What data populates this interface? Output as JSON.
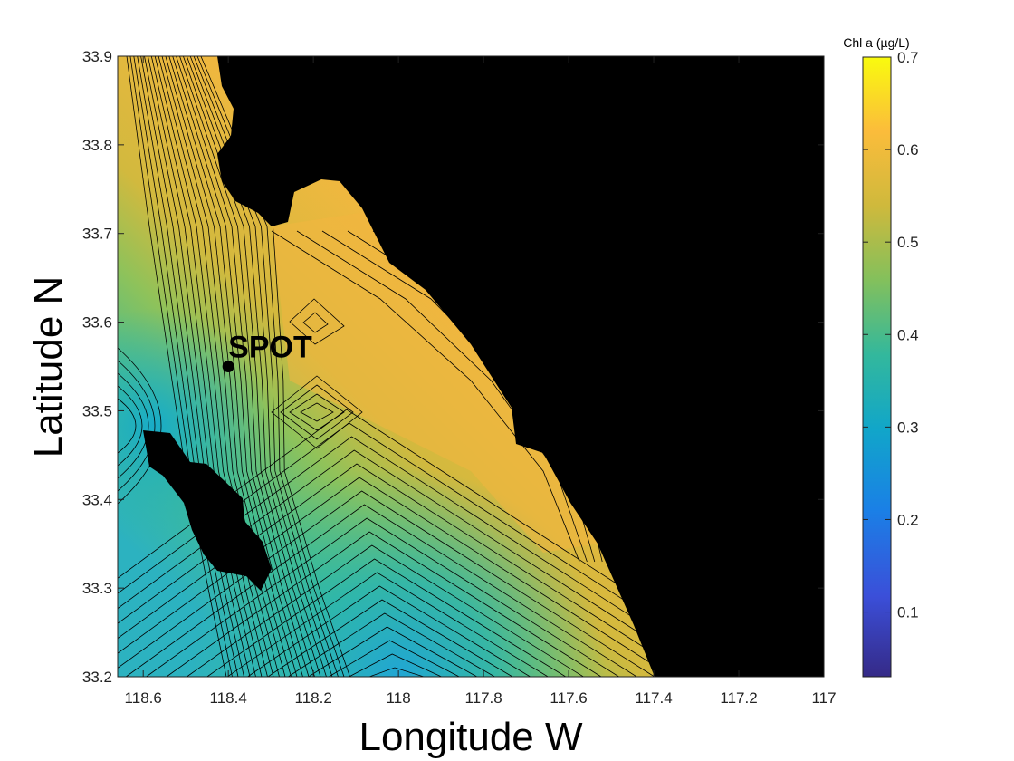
{
  "figure": {
    "xlabel": "Longitude W",
    "ylabel": "Latitude N",
    "colorbar_label": "Chl a (µg/L)",
    "marker_label": "SPOT"
  },
  "x_ticks": [
    "118.6",
    "118.4",
    "118.2",
    "118",
    "117.8",
    "117.6",
    "117.4",
    "117.2",
    "117"
  ],
  "y_ticks": [
    "33.2",
    "33.3",
    "33.4",
    "33.5",
    "33.6",
    "33.7",
    "33.8",
    "33.9"
  ],
  "colorbar_ticks": [
    "0.1",
    "0.2",
    "0.3",
    "0.4",
    "0.5",
    "0.6",
    "0.7"
  ],
  "colors": {
    "land": "#000000",
    "contour_line": "#000000"
  },
  "chart_data": {
    "type": "heatmap",
    "variable": "Chl a (µg/L)",
    "colormap": "parula",
    "xlim_deg_W": [
      118.66,
      117.0
    ],
    "ylim_deg_N": [
      33.2,
      33.9
    ],
    "clim": [
      0.03,
      0.7
    ],
    "marker": {
      "label": "SPOT",
      "lon_W": 118.4,
      "lat_N": 33.55
    },
    "field_samples": [
      {
        "lon_W": 118.6,
        "lat_N": 33.85,
        "chl": 0.47
      },
      {
        "lon_W": 118.4,
        "lat_N": 33.85,
        "chl": 0.6
      },
      {
        "lon_W": 118.1,
        "lat_N": 33.7,
        "chl": 0.6
      },
      {
        "lon_W": 118.2,
        "lat_N": 33.5,
        "chl": 0.55
      },
      {
        "lon_W": 118.2,
        "lat_N": 33.6,
        "chl": 0.58
      },
      {
        "lon_W": 117.9,
        "lat_N": 33.55,
        "chl": 0.6
      },
      {
        "lon_W": 117.6,
        "lat_N": 33.4,
        "chl": 0.57
      },
      {
        "lon_W": 118.6,
        "lat_N": 33.6,
        "chl": 0.42
      },
      {
        "lon_W": 118.6,
        "lat_N": 33.5,
        "chl": 0.33
      },
      {
        "lon_W": 118.6,
        "lat_N": 33.3,
        "chl": 0.42
      },
      {
        "lon_W": 118.0,
        "lat_N": 33.2,
        "chl": 0.3
      },
      {
        "lon_W": 118.3,
        "lat_N": 33.25,
        "chl": 0.38
      },
      {
        "lon_W": 117.8,
        "lat_N": 33.3,
        "chl": 0.48
      }
    ]
  }
}
